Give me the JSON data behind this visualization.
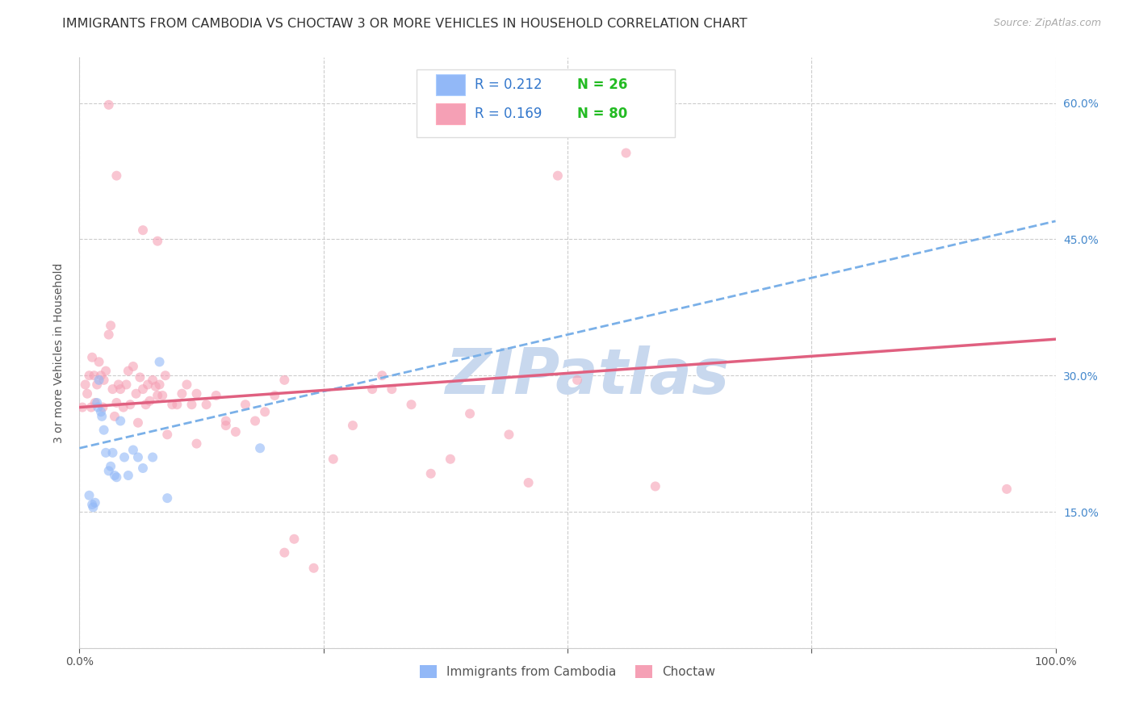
{
  "title": "IMMIGRANTS FROM CAMBODIA VS CHOCTAW 3 OR MORE VEHICLES IN HOUSEHOLD CORRELATION CHART",
  "source": "Source: ZipAtlas.com",
  "ylabel": "3 or more Vehicles in Household",
  "xlim": [
    0.0,
    1.0
  ],
  "ylim": [
    0.0,
    0.65
  ],
  "yticks": [
    0.0,
    0.15,
    0.3,
    0.45,
    0.6
  ],
  "ytick_labels_right": [
    "15.0%",
    "30.0%",
    "45.0%",
    "60.0%"
  ],
  "background_color": "#ffffff",
  "grid_color": "#cccccc",
  "watermark": "ZIPatlas",
  "watermark_color": "#c8d8ee",
  "color_blue": "#92b8f7",
  "color_pink": "#f5a0b5",
  "line_blue": "#7ab0e8",
  "line_pink": "#e06080",
  "marker_size": 75,
  "marker_alpha": 0.6,
  "blue_intercept": 0.22,
  "blue_slope": 0.25,
  "pink_intercept": 0.265,
  "pink_slope": 0.075,
  "cambodia_x": [
    0.01,
    0.013,
    0.014,
    0.016,
    0.018,
    0.019,
    0.02,
    0.022,
    0.023,
    0.025,
    0.027,
    0.03,
    0.032,
    0.034,
    0.036,
    0.038,
    0.042,
    0.046,
    0.05,
    0.055,
    0.06,
    0.065,
    0.075,
    0.082,
    0.09,
    0.185
  ],
  "cambodia_y": [
    0.168,
    0.158,
    0.155,
    0.16,
    0.27,
    0.265,
    0.295,
    0.26,
    0.255,
    0.24,
    0.215,
    0.195,
    0.2,
    0.215,
    0.19,
    0.188,
    0.25,
    0.21,
    0.19,
    0.218,
    0.21,
    0.198,
    0.21,
    0.315,
    0.165,
    0.22
  ],
  "choctaw_x": [
    0.003,
    0.006,
    0.008,
    0.01,
    0.012,
    0.013,
    0.015,
    0.016,
    0.018,
    0.02,
    0.022,
    0.024,
    0.025,
    0.027,
    0.03,
    0.032,
    0.034,
    0.036,
    0.038,
    0.04,
    0.042,
    0.045,
    0.048,
    0.05,
    0.052,
    0.055,
    0.058,
    0.06,
    0.062,
    0.065,
    0.068,
    0.07,
    0.072,
    0.075,
    0.078,
    0.08,
    0.082,
    0.085,
    0.088,
    0.09,
    0.095,
    0.1,
    0.105,
    0.11,
    0.115,
    0.12,
    0.13,
    0.14,
    0.15,
    0.16,
    0.17,
    0.18,
    0.19,
    0.2,
    0.21,
    0.22,
    0.24,
    0.26,
    0.28,
    0.3,
    0.31,
    0.32,
    0.34,
    0.36,
    0.38,
    0.4,
    0.44,
    0.46,
    0.49,
    0.51,
    0.56,
    0.59,
    0.038,
    0.065,
    0.08,
    0.12,
    0.15,
    0.21,
    0.03,
    0.95
  ],
  "choctaw_y": [
    0.265,
    0.29,
    0.28,
    0.3,
    0.265,
    0.32,
    0.3,
    0.27,
    0.29,
    0.315,
    0.3,
    0.265,
    0.295,
    0.305,
    0.345,
    0.355,
    0.285,
    0.255,
    0.27,
    0.29,
    0.285,
    0.265,
    0.29,
    0.305,
    0.268,
    0.31,
    0.28,
    0.248,
    0.298,
    0.285,
    0.268,
    0.29,
    0.272,
    0.295,
    0.288,
    0.278,
    0.29,
    0.278,
    0.3,
    0.235,
    0.268,
    0.268,
    0.28,
    0.29,
    0.268,
    0.225,
    0.268,
    0.278,
    0.245,
    0.238,
    0.268,
    0.25,
    0.26,
    0.278,
    0.105,
    0.12,
    0.088,
    0.208,
    0.245,
    0.285,
    0.3,
    0.285,
    0.268,
    0.192,
    0.208,
    0.258,
    0.235,
    0.182,
    0.52,
    0.295,
    0.545,
    0.178,
    0.52,
    0.46,
    0.448,
    0.28,
    0.25,
    0.295,
    0.598,
    0.175
  ]
}
